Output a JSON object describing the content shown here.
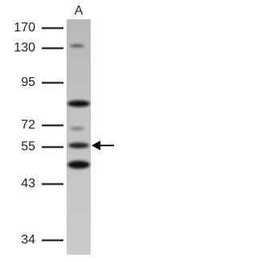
{
  "lanes": [
    "A"
  ],
  "markers": [
    170,
    130,
    95,
    72,
    55,
    43,
    34
  ]
}
